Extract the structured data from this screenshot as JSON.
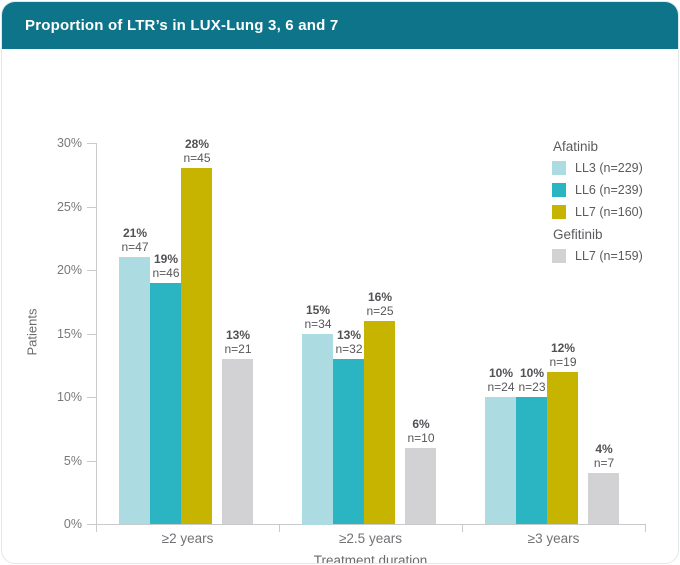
{
  "header": {
    "title": "Proportion of LTR’s in LUX-Lung 3, 6 and 7"
  },
  "chart_data": {
    "type": "bar",
    "title": "Proportion of LTR’s in LUX-Lung 3, 6 and 7",
    "xlabel": "Treatment duration",
    "ylabel": "Patients",
    "categories": [
      "≥2 years",
      "≥2.5 years",
      "≥3 years"
    ],
    "ylim": [
      0,
      30
    ],
    "ytick_step": 5,
    "ytick_suffix": "%",
    "grid": false,
    "legend_position": "top-right",
    "series": [
      {
        "name": "LL3 (n=229)",
        "drug": "Afatinib",
        "color": "#acdce1",
        "values": [
          21,
          15,
          10
        ],
        "counts": [
          47,
          34,
          24
        ]
      },
      {
        "name": "LL6 (n=239)",
        "drug": "Afatinib",
        "color": "#2bb5c3",
        "values": [
          19,
          13,
          10
        ],
        "counts": [
          46,
          32,
          23
        ]
      },
      {
        "name": "LL7 (n=160)",
        "drug": "Afatinib",
        "color": "#c7b400",
        "values": [
          28,
          16,
          12
        ],
        "counts": [
          45,
          25,
          19
        ]
      },
      {
        "name": "LL7 (n=159)",
        "drug": "Gefitinib",
        "color": "#d2d2d4",
        "values": [
          13,
          6,
          4
        ],
        "counts": [
          21,
          10,
          7
        ]
      }
    ],
    "legend_groups": [
      {
        "title": "Afatinib",
        "series": [
          0,
          1,
          2
        ]
      },
      {
        "title": "Gefitinib",
        "series": [
          3
        ]
      }
    ]
  }
}
